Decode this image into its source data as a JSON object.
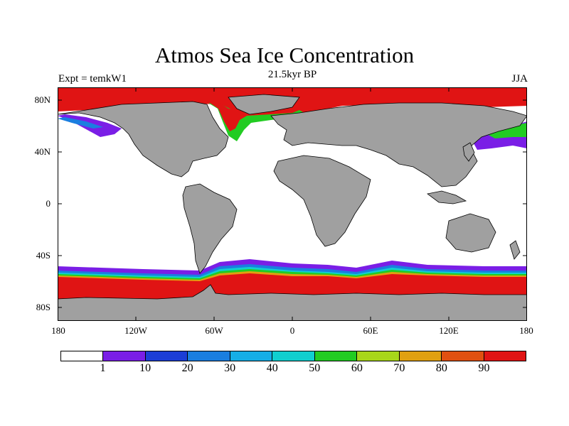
{
  "title": "Atmos Sea Ice Concentration",
  "subtitle": "21.5kyr BP",
  "left_label": "Expt = temkW1",
  "right_label": "JJA",
  "y_ticks": [
    "80N",
    "40N",
    "0",
    "40S",
    "80S"
  ],
  "x_ticks": [
    "180",
    "120W",
    "60W",
    "0",
    "60E",
    "120E",
    "180"
  ],
  "colorbar": {
    "labels": [
      "1",
      "10",
      "20",
      "30",
      "40",
      "50",
      "60",
      "70",
      "80",
      "90"
    ],
    "colors": [
      "#ffffff",
      "#7a1ee6",
      "#1c3ed6",
      "#1a7ee0",
      "#16aee6",
      "#10cfcf",
      "#22cc22",
      "#a8d61a",
      "#e0a010",
      "#e05010",
      "#e01414"
    ]
  },
  "map_colors": {
    "land": "#a0a0a0",
    "ice_full": "#e01414",
    "ocean": "#ffffff",
    "coast": "#000000"
  }
}
